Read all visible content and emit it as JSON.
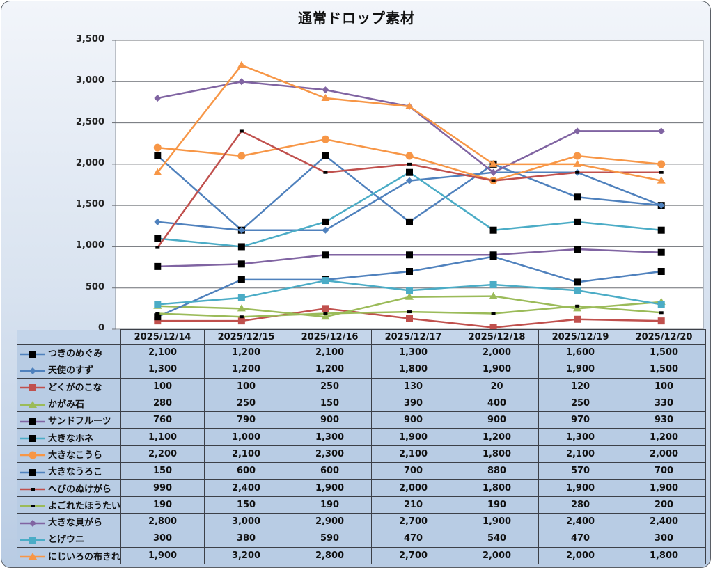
{
  "chart_data": {
    "type": "line",
    "title": "通常ドロップ素材",
    "xlabel": "",
    "ylabel": "",
    "ylim": [
      0,
      3500
    ],
    "yticks": [
      0,
      500,
      1000,
      1500,
      2000,
      2500,
      3000,
      3500
    ],
    "ytick_labels": [
      "0",
      "500",
      "1,000",
      "1,500",
      "2,000",
      "2,500",
      "3,000",
      "3,500"
    ],
    "grid": true,
    "legend": "data-table",
    "categories": [
      "2025/12/14",
      "2025/12/15",
      "2025/12/16",
      "2025/12/17",
      "2025/12/18",
      "2025/12/19",
      "2025/12/20"
    ],
    "series": [
      {
        "name": "つきのめぐみ",
        "color": "#4f81bd",
        "marker": "square-black",
        "values": [
          2100,
          1200,
          2100,
          1300,
          2000,
          1600,
          1500
        ],
        "labels": [
          "2,100",
          "1,200",
          "2,100",
          "1,300",
          "2,000",
          "1,600",
          "1,500"
        ]
      },
      {
        "name": "天使のすず",
        "color": "#4f81bd",
        "marker": "diamond",
        "values": [
          1300,
          1200,
          1200,
          1800,
          1900,
          1900,
          1500
        ],
        "labels": [
          "1,300",
          "1,200",
          "1,200",
          "1,800",
          "1,900",
          "1,900",
          "1,500"
        ]
      },
      {
        "name": "どくがのこな",
        "color": "#c0504d",
        "marker": "square",
        "values": [
          100,
          100,
          250,
          130,
          20,
          120,
          100
        ],
        "labels": [
          "100",
          "100",
          "250",
          "130",
          "20",
          "120",
          "100"
        ]
      },
      {
        "name": "かがみ石",
        "color": "#9bbb59",
        "marker": "triangle",
        "values": [
          280,
          250,
          150,
          390,
          400,
          250,
          330
        ],
        "labels": [
          "280",
          "250",
          "150",
          "390",
          "400",
          "250",
          "330"
        ]
      },
      {
        "name": "サンドフルーツ",
        "color": "#8064a2",
        "marker": "square-black",
        "values": [
          760,
          790,
          900,
          900,
          900,
          970,
          930
        ],
        "labels": [
          "760",
          "790",
          "900",
          "900",
          "900",
          "970",
          "930"
        ]
      },
      {
        "name": "大きなホネ",
        "color": "#4bacc6",
        "marker": "square-black",
        "values": [
          1100,
          1000,
          1300,
          1900,
          1200,
          1300,
          1200
        ],
        "labels": [
          "1,100",
          "1,000",
          "1,300",
          "1,900",
          "1,200",
          "1,300",
          "1,200"
        ]
      },
      {
        "name": "大きなこうら",
        "color": "#f79646",
        "marker": "circle",
        "values": [
          2200,
          2100,
          2300,
          2100,
          1800,
          2100,
          2000
        ],
        "labels": [
          "2,200",
          "2,100",
          "2,300",
          "2,100",
          "1,800",
          "2,100",
          "2,000"
        ]
      },
      {
        "name": "大きなうろこ",
        "color": "#4f81bd",
        "marker": "square-black",
        "values": [
          150,
          600,
          600,
          700,
          880,
          570,
          700
        ],
        "labels": [
          "150",
          "600",
          "600",
          "700",
          "880",
          "570",
          "700"
        ]
      },
      {
        "name": "へびのぬけがら",
        "color": "#c0504d",
        "marker": "dash-black",
        "values": [
          990,
          2400,
          1900,
          2000,
          1800,
          1900,
          1900
        ],
        "labels": [
          "990",
          "2,400",
          "1,900",
          "2,000",
          "1,800",
          "1,900",
          "1,900"
        ]
      },
      {
        "name": "よごれたほうたい",
        "color": "#9bbb59",
        "marker": "dash-black",
        "values": [
          190,
          150,
          190,
          210,
          190,
          280,
          200
        ],
        "labels": [
          "190",
          "150",
          "190",
          "210",
          "190",
          "280",
          "200"
        ]
      },
      {
        "name": "大きな貝がら",
        "color": "#8064a2",
        "marker": "diamond",
        "values": [
          2800,
          3000,
          2900,
          2700,
          1900,
          2400,
          2400
        ],
        "labels": [
          "2,800",
          "3,000",
          "2,900",
          "2,700",
          "1,900",
          "2,400",
          "2,400"
        ]
      },
      {
        "name": "とげウニ",
        "color": "#4bacc6",
        "marker": "square",
        "values": [
          300,
          380,
          590,
          470,
          540,
          470,
          300
        ],
        "labels": [
          "300",
          "380",
          "590",
          "470",
          "540",
          "470",
          "300"
        ]
      },
      {
        "name": "にじいろの布きれ",
        "color": "#f79646",
        "marker": "triangle",
        "values": [
          1900,
          3200,
          2800,
          2700,
          2000,
          2000,
          1800
        ],
        "labels": [
          "1,900",
          "3,200",
          "2,800",
          "2,700",
          "2,000",
          "2,000",
          "1,800"
        ]
      }
    ]
  }
}
